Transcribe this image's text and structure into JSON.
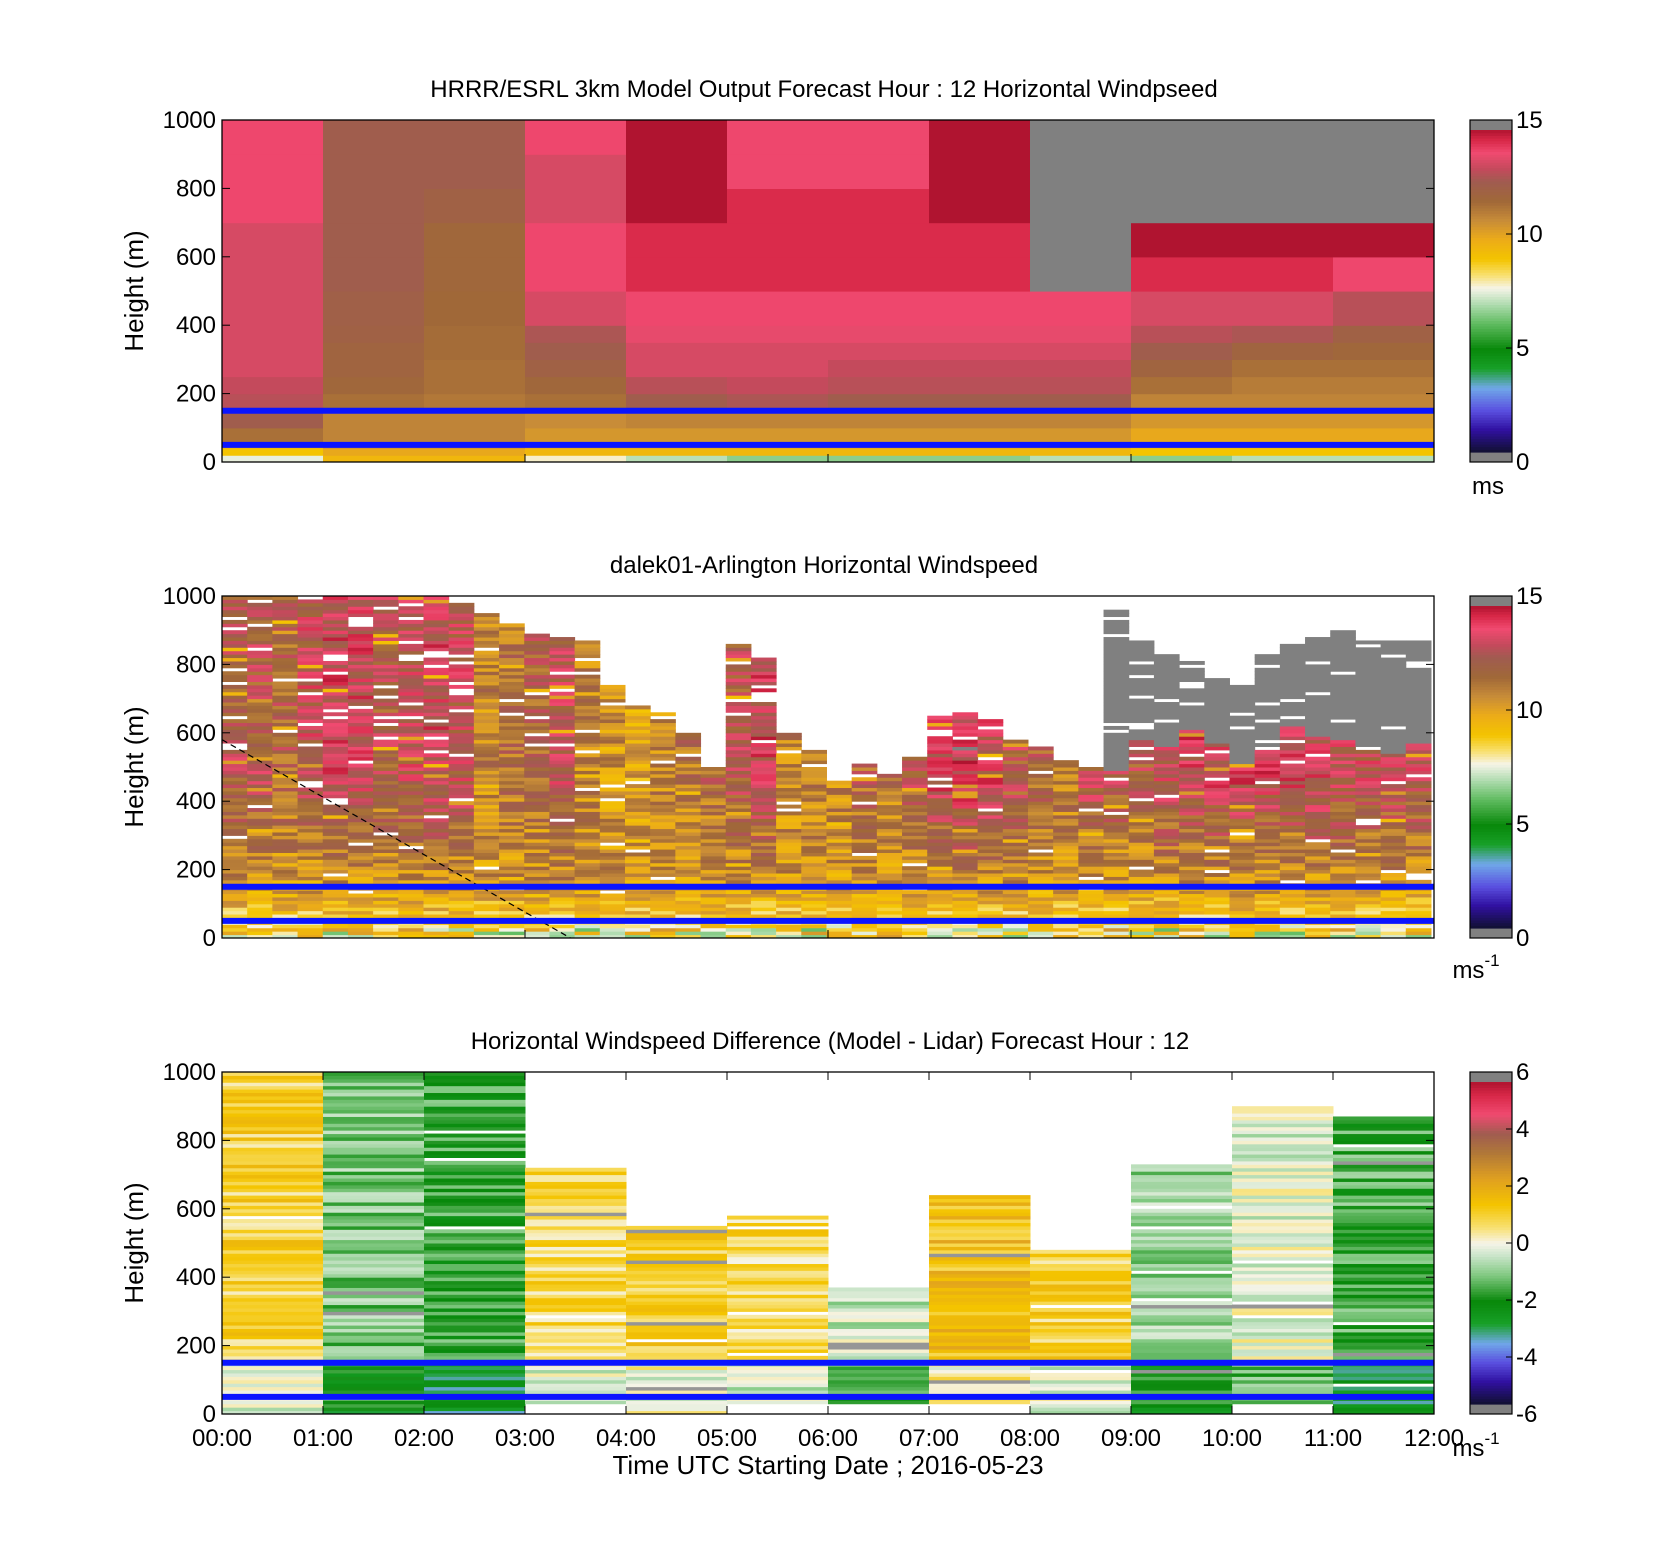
{
  "chart_data": [
    {
      "type": "heatmap",
      "title": "HRRR/ESRL 3km Model Output   Forecast Hour : 12 Horizontal Windpseed",
      "ylabel": "Height (m)",
      "ylim": [
        0,
        1000
      ],
      "y_ticks": [
        "0",
        "200",
        "400",
        "600",
        "800",
        "1000"
      ],
      "x_range_hours": [
        0,
        12
      ],
      "colorbar": {
        "ticks": [
          "0",
          "5",
          "10",
          "15"
        ],
        "unit": "ms",
        "range": [
          0,
          15
        ],
        "colormap": "windspeed"
      },
      "overlays": {
        "horizontal_lines_m": [
          150,
          50
        ],
        "line_color": "#0a14ff"
      },
      "time_hours": [
        0,
        1,
        2,
        3,
        4,
        5,
        6,
        7,
        8,
        9,
        10,
        11
      ],
      "height_levels_m": [
        0,
        20,
        40,
        60,
        100,
        150,
        200,
        250,
        300,
        350,
        400,
        500,
        600,
        700,
        800,
        900,
        1000
      ],
      "values": [
        [
          7.5,
          9.0,
          9.5,
          11.5,
          12.5,
          13.0,
          13.2,
          13.5,
          13.5,
          13.5,
          13.5,
          13.5,
          13.5,
          14.0,
          14.0,
          14.0
        ],
        [
          9.5,
          10.0,
          10.5,
          11.0,
          11.0,
          11.5,
          11.8,
          12.0,
          12.0,
          12.2,
          12.3,
          12.5,
          12.5,
          12.5,
          12.5,
          12.5
        ],
        [
          9.5,
          10.0,
          10.5,
          11.0,
          11.0,
          11.3,
          11.5,
          11.5,
          11.6,
          11.6,
          11.7,
          11.8,
          11.8,
          12.2,
          12.5,
          12.5
        ],
        [
          7.8,
          9.5,
          10.0,
          10.5,
          10.8,
          11.5,
          11.8,
          12.2,
          12.5,
          12.8,
          13.5,
          14.0,
          14.0,
          13.5,
          13.5,
          14.0
        ],
        [
          7.0,
          9.5,
          10.0,
          10.5,
          11.0,
          12.5,
          13.0,
          13.5,
          13.5,
          13.8,
          14.0,
          14.5,
          14.5,
          15.0,
          15.0,
          15.0
        ],
        [
          6.5,
          9.5,
          10.0,
          10.5,
          11.0,
          12.8,
          13.2,
          13.5,
          13.5,
          13.8,
          14.0,
          14.5,
          14.5,
          14.5,
          14.0,
          14.0
        ],
        [
          6.5,
          9.5,
          10.0,
          10.5,
          11.0,
          12.5,
          13.0,
          13.2,
          13.5,
          13.8,
          14.0,
          14.5,
          14.5,
          14.5,
          14.0,
          14.0
        ],
        [
          6.5,
          9.5,
          10.0,
          10.5,
          11.0,
          12.5,
          13.0,
          13.2,
          13.5,
          13.8,
          14.0,
          14.5,
          14.5,
          15.0,
          15.0,
          15.0
        ],
        [
          7.0,
          9.5,
          10.0,
          10.5,
          11.0,
          12.5,
          13.0,
          13.2,
          13.5,
          13.8,
          14.0,
          15.5,
          15.5,
          16.0,
          16.0,
          16.0
        ],
        [
          6.5,
          9.0,
          9.5,
          10.0,
          10.5,
          11.0,
          11.5,
          12.0,
          12.5,
          13.0,
          13.5,
          14.5,
          15.0,
          16.0,
          16.0,
          16.0
        ],
        [
          7.0,
          9.0,
          9.5,
          10.0,
          10.5,
          11.0,
          11.2,
          11.5,
          12.0,
          12.8,
          13.5,
          14.5,
          15.0,
          16.0,
          16.0,
          16.0
        ],
        [
          7.0,
          9.0,
          9.5,
          10.0,
          10.5,
          11.0,
          11.2,
          11.5,
          11.8,
          12.2,
          13.0,
          14.0,
          15.0,
          16.0,
          16.0,
          16.0
        ]
      ]
    },
    {
      "type": "heatmap",
      "title": "dalek01-Arlington  Horizontal Windspeed",
      "ylabel": "Height (m)",
      "ylim": [
        0,
        1000
      ],
      "y_ticks": [
        "0",
        "200",
        "400",
        "600",
        "800",
        "1000"
      ],
      "x_range_hours": [
        0,
        12
      ],
      "colorbar": {
        "ticks": [
          "0",
          "5",
          "10",
          "15"
        ],
        "unit": "ms",
        "unit_superscript": "-1",
        "range": [
          0,
          15
        ],
        "colormap": "windspeed"
      },
      "overlays": {
        "horizontal_lines_m": [
          150,
          50
        ],
        "line_color": "#0a14ff",
        "dashed_line": {
          "from": [
            0,
            580
          ],
          "to": [
            3.45,
            0
          ]
        }
      },
      "time_hours": [
        0,
        0.25,
        0.5,
        0.75,
        1,
        1.25,
        1.5,
        1.75,
        2,
        2.25,
        2.5,
        2.75,
        3,
        3.25,
        3.5,
        3.75,
        4,
        4.25,
        4.5,
        4.75,
        5,
        5.25,
        5.5,
        5.75,
        6,
        6.25,
        6.5,
        6.75,
        7,
        7.25,
        7.5,
        7.75,
        8,
        8.25,
        8.5,
        8.75,
        9,
        9.25,
        9.5,
        9.75,
        10,
        10.25,
        10.5,
        10.75,
        11,
        11.25,
        11.5,
        11.75
      ],
      "top_height_m": [
        1000,
        1000,
        1000,
        1000,
        1000,
        1000,
        1000,
        1000,
        1000,
        980,
        950,
        920,
        900,
        880,
        870,
        740,
        690,
        660,
        600,
        500,
        860,
        820,
        600,
        560,
        460,
        520,
        480,
        530,
        650,
        660,
        640,
        580,
        560,
        520,
        500,
        960,
        880,
        830,
        810,
        760,
        740,
        830,
        860,
        880,
        900,
        880,
        870,
        870
      ],
      "valid_top_m": [
        1000,
        1000,
        1000,
        1000,
        1000,
        1000,
        1000,
        1000,
        1000,
        980,
        950,
        920,
        900,
        880,
        870,
        740,
        690,
        660,
        600,
        500,
        860,
        820,
        600,
        560,
        460,
        520,
        480,
        530,
        650,
        660,
        640,
        580,
        560,
        520,
        500,
        490,
        580,
        560,
        610,
        570,
        510,
        560,
        620,
        590,
        580,
        550,
        540,
        570
      ],
      "mean_speed_ms": [
        12.5,
        12.5,
        12.0,
        13.0,
        13.5,
        13.5,
        12.5,
        13.0,
        13.5,
        13.0,
        11.0,
        11.5,
        12.0,
        13.0,
        11.0,
        10.5,
        10.0,
        11.0,
        11.5,
        12.0,
        12.5,
        13.5,
        11.0,
        11.5,
        11.0,
        12.0,
        11.5,
        12.5,
        13.5,
        14.0,
        13.5,
        12.5,
        12.0,
        11.5,
        13.0,
        12.5,
        12.5,
        13.0,
        13.5,
        13.5,
        13.5,
        13.5,
        13.8,
        13.5,
        13.0,
        13.0,
        13.0,
        13.0
      ]
    },
    {
      "type": "heatmap",
      "title": "Horizontal Windspeed Difference (Model - Lidar) Forecast Hour : 12",
      "xlabel": "Time UTC  Starting Date ; 2016-05-23",
      "ylabel": "Height (m)",
      "ylim": [
        0,
        1000
      ],
      "y_ticks": [
        "0",
        "200",
        "400",
        "600",
        "800",
        "1000"
      ],
      "x_ticks": [
        "00:00",
        "01:00",
        "02:00",
        "03:00",
        "04:00",
        "05:00",
        "06:00",
        "07:00",
        "08:00",
        "09:00",
        "10:00",
        "11:00",
        "12:00"
      ],
      "x_range_hours": [
        0,
        12
      ],
      "colorbar": {
        "ticks": [
          "-6",
          "-4",
          "-2",
          "0",
          "2",
          "4",
          "6"
        ],
        "unit": "ms",
        "unit_superscript": "-1",
        "range": [
          -6,
          6
        ],
        "colormap": "difference"
      },
      "overlays": {
        "horizontal_lines_m": [
          150,
          50
        ],
        "line_color": "#0a14ff"
      },
      "time_hours": [
        0,
        1,
        2,
        3,
        4,
        5,
        6,
        7,
        8,
        9,
        10,
        11
      ],
      "top_height_m": [
        1000,
        1000,
        1000,
        720,
        550,
        575,
        370,
        640,
        480,
        730,
        900,
        870
      ],
      "bottom_height_m": [
        0,
        0,
        0,
        30,
        0,
        30,
        30,
        30,
        0,
        0,
        30,
        0
      ],
      "mean_diff_ms": [
        1.0,
        -1.2,
        -1.8,
        0.8,
        1.2,
        0.8,
        -0.5,
        1.5,
        1.0,
        -1.0,
        -0.2,
        -1.6
      ]
    }
  ]
}
